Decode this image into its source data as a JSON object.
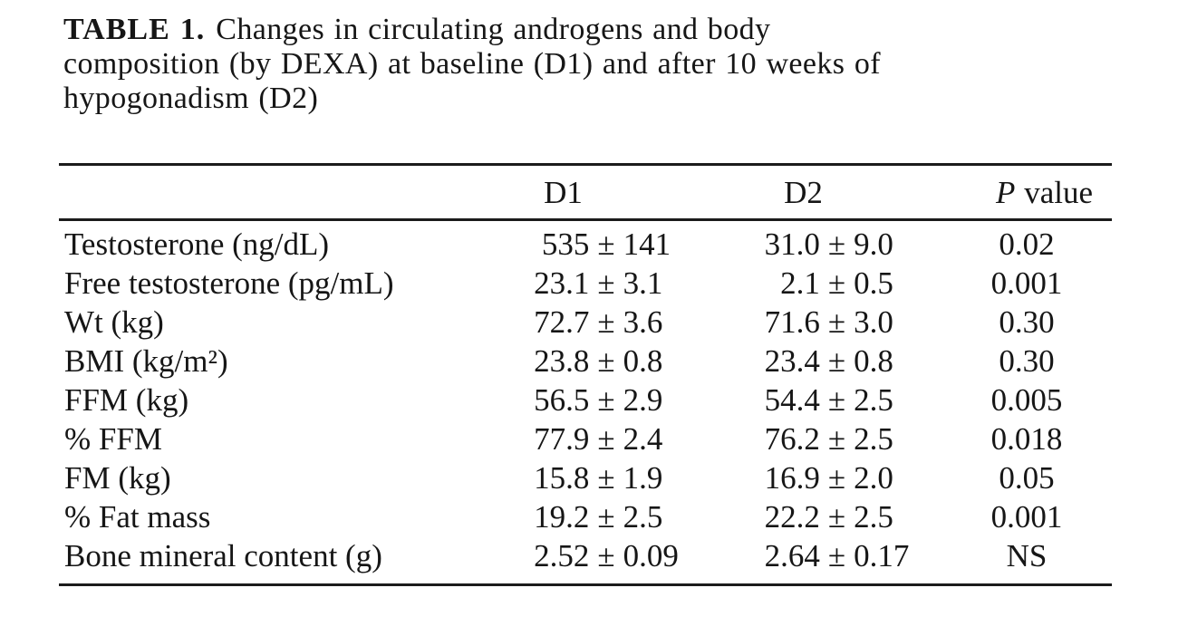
{
  "caption": {
    "label": "TABLE 1.",
    "line1": "Changes in circulating androgens and body",
    "line2": "composition (by DEXA) at baseline (D1) and after 10 weeks of",
    "line3": "hypogonadism (D2)"
  },
  "table": {
    "pm": "±",
    "header": {
      "d1": "D1",
      "d2": "D2",
      "p_italic": "P",
      "p_rest": "value"
    },
    "rows": [
      {
        "label": "Testosterone (ng/dL)",
        "d1_mean": "535",
        "d1_sd": "141",
        "d2_mean": "31.0",
        "d2_sd": "9.0",
        "p": "0.02"
      },
      {
        "label": "Free testosterone (pg/mL)",
        "d1_mean": "23.1",
        "d1_sd": "3.1",
        "d2_mean": "2.1",
        "d2_sd": "0.5",
        "p": "0.001"
      },
      {
        "label": "Wt (kg)",
        "d1_mean": "72.7",
        "d1_sd": "3.6",
        "d2_mean": "71.6",
        "d2_sd": "3.0",
        "p": "0.30"
      },
      {
        "label": "BMI (kg/m²)",
        "d1_mean": "23.8",
        "d1_sd": "0.8",
        "d2_mean": "23.4",
        "d2_sd": "0.8",
        "p": "0.30"
      },
      {
        "label": "FFM (kg)",
        "d1_mean": "56.5",
        "d1_sd": "2.9",
        "d2_mean": "54.4",
        "d2_sd": "2.5",
        "p": "0.005"
      },
      {
        "label": "% FFM",
        "d1_mean": "77.9",
        "d1_sd": "2.4",
        "d2_mean": "76.2",
        "d2_sd": "2.5",
        "p": "0.018"
      },
      {
        "label": "FM (kg)",
        "d1_mean": "15.8",
        "d1_sd": "1.9",
        "d2_mean": "16.9",
        "d2_sd": "2.0",
        "p": "0.05"
      },
      {
        "label": "% Fat mass",
        "d1_mean": "19.2",
        "d1_sd": "2.5",
        "d2_mean": "22.2",
        "d2_sd": "2.5",
        "p": "0.001"
      },
      {
        "label": "Bone mineral content (g)",
        "d1_mean": "2.52",
        "d1_sd": "0.09",
        "d2_mean": "2.64",
        "d2_sd": "0.17",
        "p": "NS"
      }
    ]
  }
}
